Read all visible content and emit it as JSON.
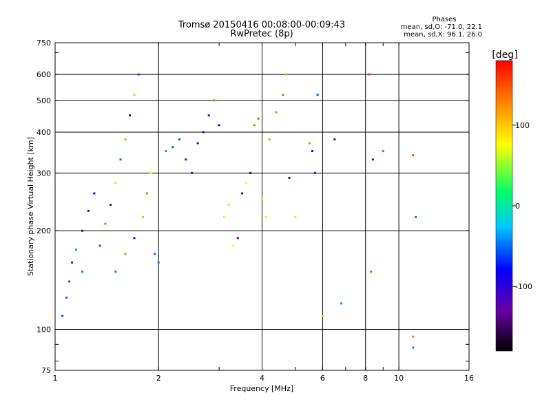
{
  "title_line1": "Tromsø 20150416 00:08:00-00:09:43",
  "title_line2": "RwPretec (8p)",
  "stats": {
    "heading": "Phases",
    "line_o": "mean, sd,O: -71.0, 22.1",
    "line_x": "mean, sd,X:  96.1, 26.0"
  },
  "chart_data": {
    "type": "scatter",
    "title": "Tromsø 20150416 00:08:00-00:09:43",
    "subtitle": "RwPretec (8p)",
    "xlabel": "Frequency [MHz]",
    "ylabel": "Stationary phase Virtual Height [km]",
    "x_scale": "log",
    "y_scale": "log",
    "xlim": [
      1,
      16
    ],
    "ylim": [
      75,
      750
    ],
    "x_ticks": [
      1,
      2,
      4,
      6,
      8,
      10,
      16
    ],
    "x_tick_labels": [
      "1",
      "2",
      "4",
      "6",
      "8",
      "10",
      "16"
    ],
    "y_ticks": [
      75,
      100,
      200,
      300,
      400,
      500,
      600,
      750
    ],
    "y_tick_labels": [
      "75",
      "100",
      "200",
      "300",
      "400",
      "500",
      "600",
      "750"
    ],
    "grid": true,
    "colorbar": {
      "label": "[deg]",
      "range": [
        -180,
        180
      ],
      "ticks": [
        100,
        0,
        -100
      ],
      "tick_labels": [
        "100",
        "0",
        "-100"
      ],
      "colors": [
        "#000000",
        "#6a00a8",
        "#0000ff",
        "#00c8ff",
        "#00ff66",
        "#ffff00",
        "#ff8000",
        "#ff0000"
      ]
    },
    "points": [
      [
        1.05,
        110,
        -60
      ],
      [
        1.08,
        125,
        -55
      ],
      [
        1.1,
        140,
        -50
      ],
      [
        1.12,
        160,
        -65
      ],
      [
        1.15,
        175,
        -40
      ],
      [
        1.2,
        200,
        -110
      ],
      [
        1.25,
        230,
        -100
      ],
      [
        1.3,
        260,
        -90
      ],
      [
        1.2,
        150,
        -45
      ],
      [
        1.35,
        180,
        -55
      ],
      [
        1.4,
        210,
        140
      ],
      [
        1.45,
        240,
        -120
      ],
      [
        1.5,
        280,
        90
      ],
      [
        1.55,
        330,
        -50
      ],
      [
        1.6,
        380,
        120
      ],
      [
        1.65,
        450,
        -110
      ],
      [
        1.7,
        520,
        100
      ],
      [
        1.75,
        600,
        -60
      ],
      [
        1.5,
        150,
        -45
      ],
      [
        1.6,
        170,
        130
      ],
      [
        1.7,
        190,
        -100
      ],
      [
        1.8,
        220,
        110
      ],
      [
        1.85,
        260,
        140
      ],
      [
        1.9,
        300,
        80
      ],
      [
        1.95,
        170,
        -50
      ],
      [
        2.0,
        160,
        -45
      ],
      [
        2.1,
        350,
        -40
      ],
      [
        2.2,
        360,
        -50
      ],
      [
        2.3,
        380,
        -60
      ],
      [
        2.4,
        330,
        -70
      ],
      [
        2.5,
        300,
        -110
      ],
      [
        2.6,
        370,
        -120
      ],
      [
        2.7,
        400,
        -100
      ],
      [
        2.8,
        450,
        -115
      ],
      [
        2.9,
        500,
        130
      ],
      [
        3.0,
        420,
        -105
      ],
      [
        3.1,
        220,
        85
      ],
      [
        3.2,
        240,
        90
      ],
      [
        3.3,
        180,
        70
      ],
      [
        3.4,
        190,
        -120
      ],
      [
        3.5,
        260,
        -110
      ],
      [
        3.6,
        280,
        80
      ],
      [
        3.7,
        300,
        -100
      ],
      [
        3.8,
        420,
        140
      ],
      [
        3.9,
        440,
        150
      ],
      [
        4.0,
        250,
        90
      ],
      [
        4.1,
        220,
        85
      ],
      [
        4.2,
        380,
        120
      ],
      [
        4.4,
        460,
        130
      ],
      [
        4.6,
        520,
        140
      ],
      [
        4.7,
        600,
        110
      ],
      [
        4.8,
        290,
        -110
      ],
      [
        5.0,
        220,
        90
      ],
      [
        5.5,
        370,
        130
      ],
      [
        5.6,
        350,
        -100
      ],
      [
        5.7,
        300,
        -110
      ],
      [
        5.8,
        520,
        -60
      ],
      [
        6.0,
        110,
        100
      ],
      [
        6.5,
        380,
        -120
      ],
      [
        6.8,
        120,
        -40
      ],
      [
        8.2,
        600,
        160
      ],
      [
        8.3,
        150,
        150
      ],
      [
        8.4,
        330,
        -120
      ],
      [
        9.0,
        350,
        150
      ],
      [
        11.0,
        340,
        150
      ],
      [
        11.2,
        220,
        -50
      ],
      [
        11.0,
        95,
        130
      ],
      [
        11.0,
        88,
        -40
      ]
    ]
  }
}
